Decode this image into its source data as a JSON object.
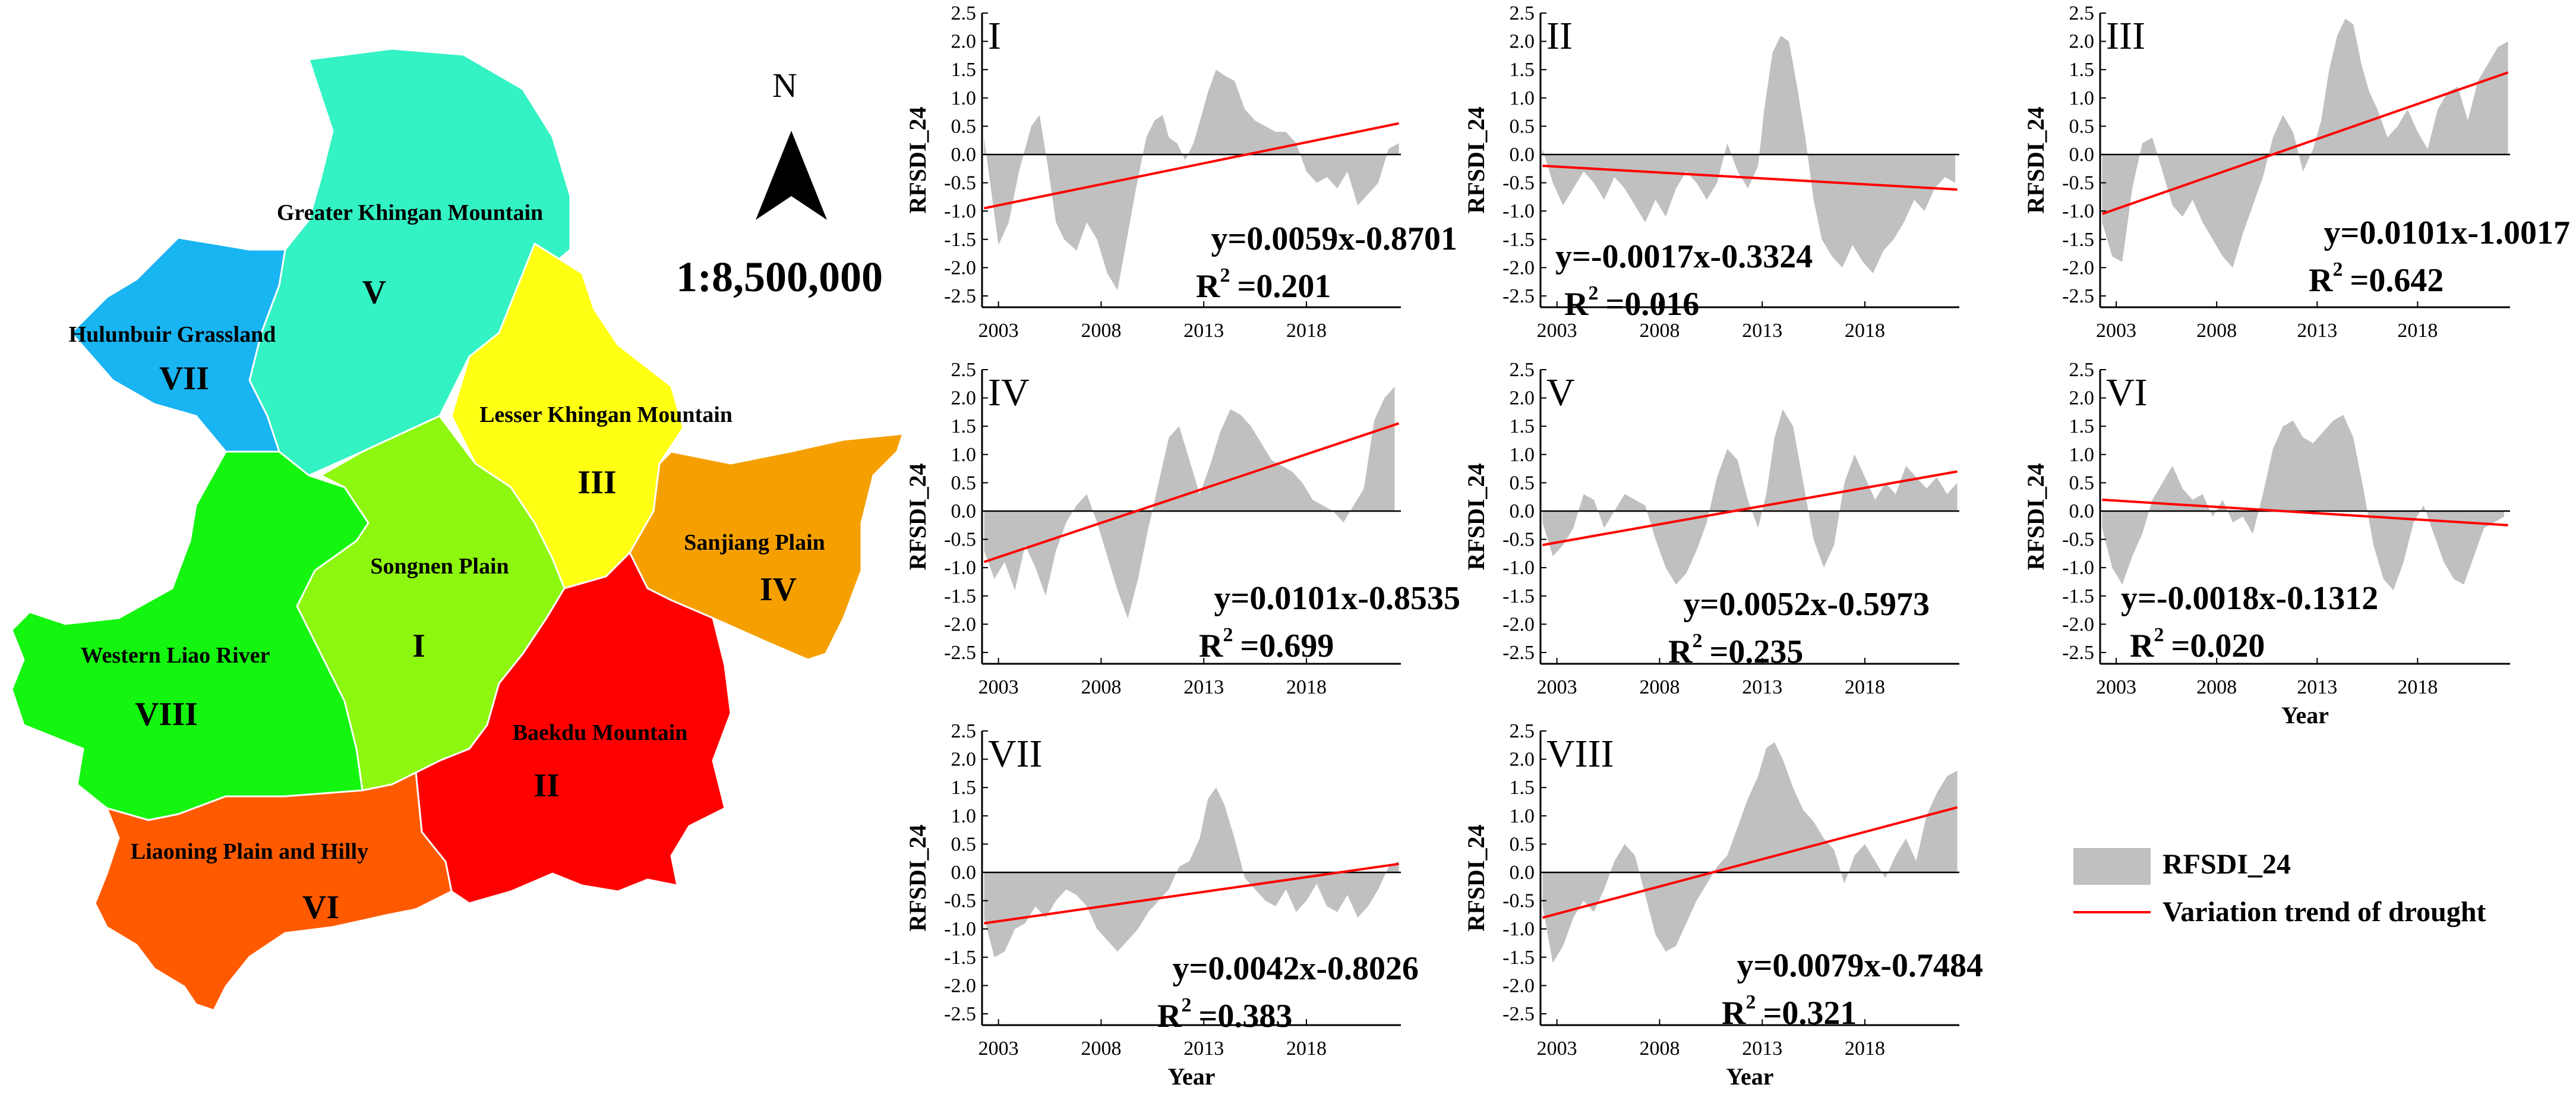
{
  "map": {
    "north_label": "N",
    "scale": "1:8,500,000",
    "regions": [
      {
        "id": "V",
        "name": "Greater Khingan Mountain",
        "color": "#33f2c4"
      },
      {
        "id": "VII",
        "name": "Hulunbuir Grassland",
        "color": "#19b4f2"
      },
      {
        "id": "III",
        "name": "Lesser Khingan Mountain",
        "color": "#ffff14"
      },
      {
        "id": "IV",
        "name": "Sanjiang Plain",
        "color": "#f5a000"
      },
      {
        "id": "I",
        "name": "Songnen Plain",
        "color": "#8ef70f"
      },
      {
        "id": "VIII",
        "name": "Western Liao River",
        "color": "#14f50f"
      },
      {
        "id": "II",
        "name": "Baekdu Mountain",
        "color": "#ff0000"
      },
      {
        "id": "VI",
        "name": "Liaoning Plain and Hilly",
        "color": "#ff5a00"
      }
    ]
  },
  "legend": {
    "bar_label": "RFSDI_24",
    "line_label": "Variation trend of drought",
    "bar_color": "#c0c0c0",
    "line_color": "#ff0000"
  },
  "chart_data": [
    {
      "type": "area",
      "panel": "I",
      "ylabel": "RFSDI_24",
      "xlabel": "",
      "xlim": [
        2002.2,
        2022.6
      ],
      "ylim": [
        -2.7,
        2.5
      ],
      "yticks": [
        "2.5",
        "2.0",
        "1.5",
        "1.0",
        "0.5",
        "0.0",
        "-0.5",
        "-1.0",
        "-1.5",
        "-2.0",
        "-2.5"
      ],
      "xticks": [
        "2003",
        "2008",
        "2013",
        "2018"
      ],
      "trend": {
        "slope": 0.0059,
        "intercept": -0.8701,
        "start": -0.95,
        "end": 0.55
      },
      "equation": "y=0.0059x-0.8701",
      "r2_label": "R",
      "r2_value": "=0.201",
      "series": {
        "name": "RFSDI_24",
        "x": [
          2002.3,
          2003,
          2003.5,
          2004,
          2004.6,
          2005,
          2005.4,
          2005.8,
          2006.2,
          2006.8,
          2007.3,
          2007.8,
          2008.3,
          2008.8,
          2009.2,
          2009.7,
          2010.2,
          2010.6,
          2011,
          2011.3,
          2011.7,
          2012.1,
          2012.5,
          2012.9,
          2013.2,
          2013.6,
          2014,
          2014.5,
          2015,
          2015.5,
          2016,
          2016.5,
          2017,
          2017.5,
          2018,
          2018.5,
          2019,
          2019.5,
          2020,
          2020.5,
          2021,
          2021.5,
          2022,
          2022.5
        ],
        "y": [
          0.3,
          -1.6,
          -1.2,
          -0.3,
          0.5,
          0.7,
          -0.2,
          -1.2,
          -1.5,
          -1.7,
          -1.2,
          -1.5,
          -2.1,
          -2.4,
          -1.6,
          -0.6,
          0.3,
          0.6,
          0.7,
          0.3,
          0.2,
          -0.1,
          0.2,
          0.7,
          1.1,
          1.5,
          1.4,
          1.3,
          0.8,
          0.6,
          0.5,
          0.4,
          0.4,
          0.2,
          -0.3,
          -0.5,
          -0.4,
          -0.6,
          -0.3,
          -0.9,
          -0.7,
          -0.5,
          0.1,
          0.2
        ]
      }
    },
    {
      "type": "area",
      "panel": "II",
      "ylabel": "RFSDI_24",
      "xlabel": "",
      "xlim": [
        2002.2,
        2022.6
      ],
      "ylim": [
        -2.7,
        2.5
      ],
      "yticks": [
        "2.5",
        "2.0",
        "1.5",
        "1.0",
        "0.5",
        "0.0",
        "-0.5",
        "-1.0",
        "-1.5",
        "-2.0",
        "-2.5"
      ],
      "xticks": [
        "2003",
        "2008",
        "2013",
        "2018"
      ],
      "trend": {
        "slope": -0.0017,
        "intercept": -0.3324,
        "start": -0.2,
        "end": -0.62
      },
      "equation": "y=-0.0017x-0.3324",
      "r2_label": "R",
      "r2_value": "=0.016",
      "series": {
        "name": "RFSDI_24",
        "x": [
          2002.3,
          2002.8,
          2003.3,
          2003.8,
          2004.3,
          2004.8,
          2005.3,
          2005.8,
          2006.3,
          2006.8,
          2007.3,
          2007.8,
          2008.3,
          2008.8,
          2009.3,
          2009.8,
          2010.3,
          2010.8,
          2011.3,
          2011.8,
          2012.3,
          2012.8,
          2013.1,
          2013.5,
          2013.9,
          2014.3,
          2014.7,
          2015.1,
          2015.5,
          2015.9,
          2016.4,
          2016.9,
          2017.4,
          2017.9,
          2018.4,
          2018.9,
          2019.4,
          2019.9,
          2020.4,
          2020.9,
          2021.4,
          2021.9,
          2022.4
        ],
        "y": [
          0.1,
          -0.5,
          -0.9,
          -0.6,
          -0.3,
          -0.5,
          -0.8,
          -0.4,
          -0.6,
          -0.9,
          -1.2,
          -0.8,
          -1.1,
          -0.6,
          -0.3,
          -0.5,
          -0.8,
          -0.5,
          0.2,
          -0.3,
          -0.6,
          -0.2,
          0.8,
          1.8,
          2.1,
          2.0,
          1.2,
          0.3,
          -0.8,
          -1.5,
          -1.8,
          -2.0,
          -1.6,
          -1.9,
          -2.1,
          -1.7,
          -1.5,
          -1.2,
          -0.8,
          -1.0,
          -0.6,
          -0.4,
          -0.5
        ]
      }
    },
    {
      "type": "area",
      "panel": "III",
      "ylabel": "RFSDI_24",
      "xlabel": "",
      "xlim": [
        2002.2,
        2022.6
      ],
      "ylim": [
        -2.7,
        2.5
      ],
      "yticks": [
        "2.5",
        "2.0",
        "1.5",
        "1.0",
        "0.5",
        "0.0",
        "-0.5",
        "-1.0",
        "-1.5",
        "-2.0",
        "-2.5"
      ],
      "xticks": [
        "2003",
        "2008",
        "2013",
        "2018"
      ],
      "trend": {
        "slope": 0.0101,
        "intercept": -1.0017,
        "start": -1.05,
        "end": 1.45
      },
      "equation": "y=0.0101x-1.0017",
      "r2_label": "R",
      "r2_value": "=0.642",
      "series": {
        "name": "RFSDI_24",
        "x": [
          2002.3,
          2002.8,
          2003.3,
          2003.8,
          2004.3,
          2004.8,
          2005.3,
          2005.8,
          2006.3,
          2006.8,
          2007.3,
          2007.8,
          2008.3,
          2008.8,
          2009.3,
          2009.8,
          2010.3,
          2010.8,
          2011.3,
          2011.8,
          2012.3,
          2012.8,
          2013.2,
          2013.6,
          2014,
          2014.4,
          2014.8,
          2015.2,
          2015.6,
          2016,
          2016.5,
          2017,
          2017.5,
          2018,
          2018.5,
          2019,
          2019.5,
          2020,
          2020.5,
          2021,
          2021.5,
          2022,
          2022.5
        ],
        "y": [
          -1.2,
          -1.8,
          -1.9,
          -0.6,
          0.2,
          0.3,
          -0.3,
          -0.9,
          -1.1,
          -0.8,
          -1.2,
          -1.5,
          -1.8,
          -2.0,
          -1.4,
          -0.9,
          -0.4,
          0.3,
          0.7,
          0.4,
          -0.3,
          0.1,
          0.6,
          1.5,
          2.1,
          2.4,
          2.3,
          1.6,
          1.1,
          0.8,
          0.3,
          0.5,
          0.8,
          0.4,
          0.1,
          0.8,
          1.1,
          1.2,
          0.6,
          1.3,
          1.6,
          1.9,
          2.0
        ]
      }
    },
    {
      "type": "area",
      "panel": "IV",
      "ylabel": "RFSDI_24",
      "xlabel": "",
      "xlim": [
        2002.2,
        2022.6
      ],
      "ylim": [
        -2.7,
        2.5
      ],
      "yticks": [
        "2.5",
        "2.0",
        "1.5",
        "1.0",
        "0.5",
        "0.0",
        "-0.5",
        "-1.0",
        "-1.5",
        "-2.0",
        "-2.5"
      ],
      "xticks": [
        "2003",
        "2008",
        "2013",
        "2018"
      ],
      "trend": {
        "slope": 0.0101,
        "intercept": -0.8535,
        "start": -0.9,
        "end": 1.55
      },
      "equation": "y=0.0101x-0.8535",
      "r2_label": "R",
      "r2_value": "=0.699",
      "series": {
        "name": "RFSDI_24",
        "x": [
          2002.3,
          2002.8,
          2003.3,
          2003.8,
          2004.3,
          2004.8,
          2005.3,
          2005.8,
          2006.3,
          2006.8,
          2007.3,
          2007.8,
          2008.3,
          2008.8,
          2009.3,
          2009.8,
          2010.3,
          2010.8,
          2011.3,
          2011.8,
          2012.3,
          2012.8,
          2013.3,
          2013.8,
          2014.3,
          2014.8,
          2015.3,
          2015.8,
          2016.3,
          2016.8,
          2017.3,
          2017.8,
          2018.3,
          2018.8,
          2019.3,
          2019.8,
          2020.3,
          2020.8,
          2021.3,
          2021.8,
          2022.3
        ],
        "y": [
          -0.7,
          -1.2,
          -0.9,
          -1.4,
          -0.6,
          -1.0,
          -1.5,
          -0.7,
          -0.2,
          0.1,
          0.3,
          -0.2,
          -0.8,
          -1.4,
          -1.9,
          -1.2,
          -0.3,
          0.5,
          1.3,
          1.5,
          0.9,
          0.3,
          0.8,
          1.4,
          1.8,
          1.7,
          1.5,
          1.2,
          0.9,
          0.8,
          0.7,
          0.5,
          0.2,
          0.1,
          0.0,
          -0.2,
          0.1,
          0.4,
          1.6,
          2.0,
          2.2
        ]
      }
    },
    {
      "type": "area",
      "panel": "V",
      "ylabel": "RFSDI_24",
      "xlabel": "",
      "xlim": [
        2002.2,
        2022.6
      ],
      "ylim": [
        -2.7,
        2.5
      ],
      "yticks": [
        "2.5",
        "2.0",
        "1.5",
        "1.0",
        "0.5",
        "0.0",
        "-0.5",
        "-1.0",
        "-1.5",
        "-2.0",
        "-2.5"
      ],
      "xticks": [
        "2003",
        "2008",
        "2013",
        "2018"
      ],
      "trend": {
        "slope": 0.0052,
        "intercept": -0.5973,
        "start": -0.6,
        "end": 0.7
      },
      "equation": "y=0.0052x-0.5973",
      "r2_label": "R",
      "r2_value": "=0.235",
      "series": {
        "name": "RFSDI_24",
        "x": [
          2002.3,
          2002.8,
          2003.3,
          2003.8,
          2004.3,
          2004.8,
          2005.3,
          2005.8,
          2006.3,
          2006.8,
          2007.3,
          2007.8,
          2008.3,
          2008.8,
          2009.3,
          2009.8,
          2010.3,
          2010.8,
          2011.3,
          2011.8,
          2012.3,
          2012.8,
          2013.2,
          2013.6,
          2014,
          2014.5,
          2015,
          2015.5,
          2016,
          2016.5,
          2017,
          2017.5,
          2018,
          2018.5,
          2019,
          2019.5,
          2020,
          2020.5,
          2021,
          2021.5,
          2022,
          2022.5
        ],
        "y": [
          -0.2,
          -0.8,
          -0.6,
          -0.3,
          0.3,
          0.2,
          -0.3,
          0.0,
          0.3,
          0.2,
          0.1,
          -0.5,
          -1.0,
          -1.3,
          -1.1,
          -0.7,
          -0.2,
          0.6,
          1.1,
          0.9,
          0.2,
          -0.3,
          0.3,
          1.3,
          1.8,
          1.5,
          0.5,
          -0.5,
          -1.0,
          -0.6,
          0.5,
          1.0,
          0.6,
          0.2,
          0.5,
          0.3,
          0.8,
          0.6,
          0.4,
          0.6,
          0.3,
          0.5
        ]
      }
    },
    {
      "type": "area",
      "panel": "VI",
      "ylabel": "RFSDI_24",
      "xlabel": "Year",
      "xlim": [
        2002.2,
        2022.6
      ],
      "ylim": [
        -2.7,
        2.5
      ],
      "yticks": [
        "2.5",
        "2.0",
        "1.5",
        "1.0",
        "0.5",
        "0.0",
        "-0.5",
        "-1.0",
        "-1.5",
        "-2.0",
        "-2.5"
      ],
      "xticks": [
        "2003",
        "2008",
        "2013",
        "2018"
      ],
      "trend": {
        "slope": -0.0018,
        "intercept": -0.1312,
        "start": 0.2,
        "end": -0.25
      },
      "equation": "y=-0.0018x-0.1312",
      "r2_label": "R",
      "r2_value": "=0.020",
      "series": {
        "name": "RFSDI_24",
        "x": [
          2002.3,
          2002.8,
          2003.3,
          2003.8,
          2004.3,
          2004.8,
          2005.3,
          2005.8,
          2006.3,
          2006.8,
          2007.3,
          2007.8,
          2008.3,
          2008.8,
          2009.3,
          2009.8,
          2010.3,
          2010.8,
          2011.3,
          2011.8,
          2012.3,
          2012.8,
          2013.3,
          2013.8,
          2014.3,
          2014.8,
          2015.3,
          2015.8,
          2016.3,
          2016.8,
          2017.3,
          2017.8,
          2018.3,
          2018.8,
          2019.3,
          2019.8,
          2020.3,
          2020.8,
          2021.3,
          2021.8,
          2022.3
        ],
        "y": [
          -0.3,
          -1.0,
          -1.3,
          -0.8,
          -0.4,
          0.2,
          0.5,
          0.8,
          0.4,
          0.2,
          0.3,
          -0.1,
          0.2,
          -0.2,
          -0.1,
          -0.4,
          0.3,
          1.1,
          1.5,
          1.6,
          1.3,
          1.2,
          1.4,
          1.6,
          1.7,
          1.3,
          0.4,
          -0.6,
          -1.2,
          -1.4,
          -0.9,
          -0.2,
          0.1,
          -0.4,
          -0.9,
          -1.2,
          -1.3,
          -0.8,
          -0.3,
          -0.2,
          -0.1
        ]
      }
    },
    {
      "type": "area",
      "panel": "VII",
      "ylabel": "RFSDI_24",
      "xlabel": "Year",
      "xlim": [
        2002.2,
        2022.6
      ],
      "ylim": [
        -2.7,
        2.5
      ],
      "yticks": [
        "2.5",
        "2.0",
        "1.5",
        "1.0",
        "0.5",
        "0.0",
        "-0.5",
        "-1.0",
        "-1.5",
        "-2.0",
        "-2.5"
      ],
      "xticks": [
        "2003",
        "2008",
        "2013",
        "2018"
      ],
      "trend": {
        "slope": 0.0042,
        "intercept": -0.8026,
        "start": -0.9,
        "end": 0.15
      },
      "equation": "y=0.0042x-0.8026",
      "r2_label": "R",
      "r2_value": "=0.383",
      "series": {
        "name": "RFSDI_24",
        "x": [
          2002.3,
          2002.8,
          2003.3,
          2003.8,
          2004.3,
          2004.8,
          2005.3,
          2005.8,
          2006.3,
          2006.8,
          2007.3,
          2007.8,
          2008.3,
          2008.8,
          2009.3,
          2009.8,
          2010.3,
          2010.8,
          2011.3,
          2011.8,
          2012.3,
          2012.8,
          2013.2,
          2013.6,
          2014,
          2014.5,
          2015,
          2015.5,
          2016,
          2016.5,
          2017,
          2017.5,
          2018,
          2018.5,
          2019,
          2019.5,
          2020,
          2020.5,
          2021,
          2021.5,
          2022,
          2022.5
        ],
        "y": [
          -0.8,
          -1.5,
          -1.4,
          -1.0,
          -0.9,
          -0.6,
          -0.8,
          -0.5,
          -0.3,
          -0.4,
          -0.6,
          -1.0,
          -1.2,
          -1.4,
          -1.2,
          -1.0,
          -0.7,
          -0.5,
          -0.3,
          0.1,
          0.2,
          0.6,
          1.3,
          1.5,
          1.2,
          0.6,
          -0.1,
          -0.3,
          -0.5,
          -0.6,
          -0.3,
          -0.7,
          -0.5,
          -0.2,
          -0.6,
          -0.7,
          -0.4,
          -0.8,
          -0.6,
          -0.3,
          0.1,
          0.2
        ]
      }
    },
    {
      "type": "area",
      "panel": "VIII",
      "ylabel": "RFSDI_24",
      "xlabel": "Year",
      "xlim": [
        2002.2,
        2022.6
      ],
      "ylim": [
        -2.7,
        2.5
      ],
      "yticks": [
        "2.5",
        "2.0",
        "1.5",
        "1.0",
        "0.5",
        "0.0",
        "-0.5",
        "-1.0",
        "-1.5",
        "-2.0",
        "-2.5"
      ],
      "xticks": [
        "2003",
        "2008",
        "2013",
        "2018"
      ],
      "trend": {
        "slope": 0.0079,
        "intercept": -0.7484,
        "start": -0.8,
        "end": 1.15
      },
      "equation": "y=0.0079x-0.7484",
      "r2_label": "R",
      "r2_value": "=0.321",
      "series": {
        "name": "RFSDI_24",
        "x": [
          2002.3,
          2002.8,
          2003.3,
          2003.8,
          2004.3,
          2004.8,
          2005.3,
          2005.8,
          2006.3,
          2006.8,
          2007.3,
          2007.8,
          2008.3,
          2008.8,
          2009.3,
          2009.8,
          2010.3,
          2010.8,
          2011.3,
          2011.8,
          2012.3,
          2012.8,
          2013.2,
          2013.6,
          2014,
          2014.5,
          2015,
          2015.5,
          2016,
          2016.5,
          2017,
          2017.5,
          2018,
          2018.5,
          2019,
          2019.5,
          2020,
          2020.5,
          2021,
          2021.5,
          2022,
          2022.5
        ],
        "y": [
          -0.6,
          -1.6,
          -1.3,
          -0.8,
          -0.5,
          -0.7,
          -0.3,
          0.2,
          0.5,
          0.3,
          -0.4,
          -1.1,
          -1.4,
          -1.3,
          -0.9,
          -0.5,
          -0.2,
          0.1,
          0.3,
          0.8,
          1.3,
          1.7,
          2.2,
          2.3,
          2.0,
          1.5,
          1.1,
          0.9,
          0.6,
          0.4,
          -0.2,
          0.3,
          0.5,
          0.2,
          -0.1,
          0.3,
          0.6,
          0.2,
          1.0,
          1.4,
          1.7,
          1.8
        ]
      }
    }
  ]
}
